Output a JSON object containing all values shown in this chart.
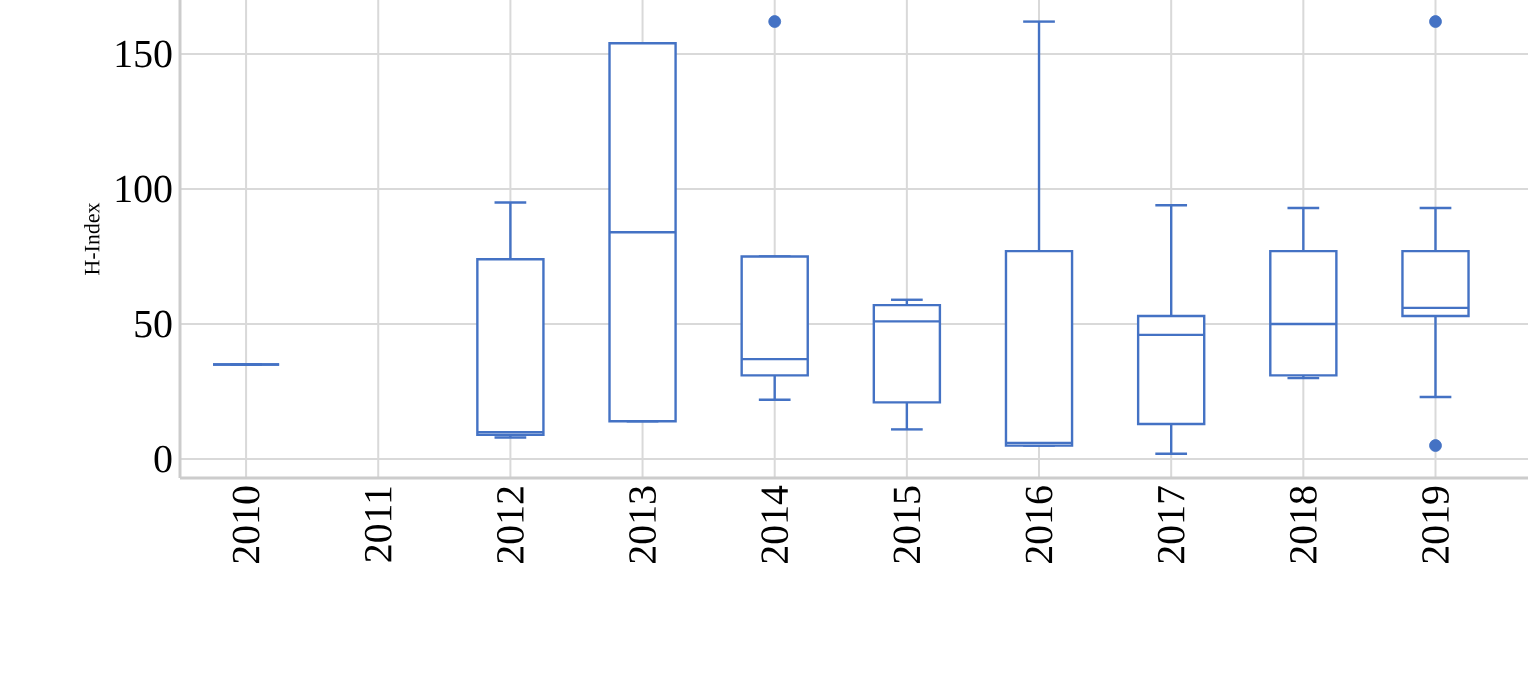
{
  "chart_data": {
    "type": "box",
    "ylabel": "H-Index",
    "categories": [
      "2010",
      "2011",
      "2012",
      "2013",
      "2014",
      "2015",
      "2016",
      "2017",
      "2018",
      "2019"
    ],
    "color": "#4472c4",
    "boxes": [
      {
        "low": 35,
        "q1": 35,
        "median": 35,
        "q3": 35,
        "high": 35
      },
      null,
      {
        "low": 8,
        "q1": 9,
        "median": 10,
        "q3": 74,
        "high": 95
      },
      {
        "low": 14,
        "q1": 14,
        "median": 84,
        "q3": 154,
        "high": 154
      },
      {
        "low": 22,
        "q1": 31,
        "median": 37,
        "q3": 75,
        "high": 75,
        "outliers": [
          162
        ]
      },
      {
        "low": 11,
        "q1": 21,
        "median": 51,
        "q3": 57,
        "high": 59
      },
      {
        "low": 5,
        "q1": 5,
        "median": 6,
        "q3": 77,
        "high": 162
      },
      {
        "low": 2,
        "q1": 13,
        "median": 46,
        "q3": 53,
        "high": 94
      },
      {
        "low": 30,
        "q1": 31,
        "median": 50,
        "q3": 77,
        "high": 93
      },
      {
        "low": 23,
        "q1": 53,
        "median": 56,
        "q3": 77,
        "high": 93,
        "outliers": [
          162,
          5
        ]
      }
    ],
    "ylim": [
      -7,
      170
    ],
    "yticks": [
      0,
      50,
      100,
      150
    ],
    "grid": true
  }
}
